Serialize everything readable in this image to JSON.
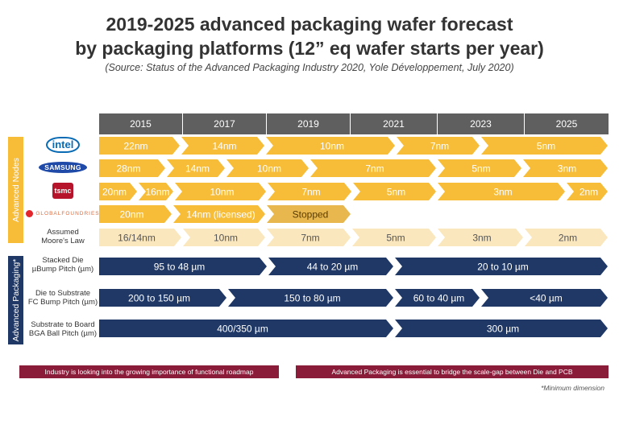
{
  "title": {
    "line1": "2019-2025 advanced packaging wafer forecast",
    "line2": "by packaging platforms (12” eq wafer starts per year)"
  },
  "source": "(Source: Status of the Advanced Packaging Industry 2020, Yole Développement, July 2020)",
  "years": [
    "2015",
    "2017",
    "2019",
    "2021",
    "2023",
    "2025"
  ],
  "side_labels": {
    "nodes": "Advanced Nodes",
    "packaging": "Advanced Packaging*"
  },
  "logos": {
    "intel": "intel",
    "samsung": "SAMSUNG",
    "tsmc": "tsmc",
    "gf": "GLOBALFOUNDRIES"
  },
  "row_labels": {
    "moore": [
      "Assumed",
      "Moore's Law"
    ],
    "stacked": [
      "Stacked Die",
      "µBump Pitch (µm)"
    ],
    "die_sub": [
      "Die to Substrate",
      "FC Bump Pitch (µm)"
    ],
    "sub_board": [
      "Substrate to Board",
      "BGA Ball Pitch (µm)"
    ]
  },
  "rows": {
    "intel": [
      "22nm",
      "14nm",
      "10nm",
      "7nm",
      "5nm"
    ],
    "samsung": [
      "28nm",
      "14nm",
      "10nm",
      "7nm",
      "5nm",
      "3nm"
    ],
    "tsmc": [
      "20nm",
      "16nm",
      "10nm",
      "7nm",
      "5nm",
      "3nm",
      "2nm"
    ],
    "gf": [
      "20nm",
      "14nm (licensed)",
      "Stopped"
    ],
    "moore": [
      "16/14nm",
      "10nm",
      "7nm",
      "5nm",
      "3nm",
      "2nm"
    ],
    "stacked": [
      "95 to 48 µm",
      "44 to 20 µm",
      "20 to 10 µm"
    ],
    "die_sub": [
      "200 to 150 µm",
      "150 to 80 µm",
      "60 to 40 µm",
      "<40 µm"
    ],
    "sub_board": [
      "400/350 µm",
      "300 µm"
    ]
  },
  "banners": {
    "left": "Industry is looking into the growing importance of functional roadmap",
    "right": "Advanced Packaging is essential to bridge the scale-gap between Die and PCB"
  },
  "footnote": "*Minimum dimension",
  "colors": {
    "yellow": "#f7bd38",
    "gray_yellow": "#e8b84f",
    "moore": "#fbe7bd",
    "navy": "#1f3866",
    "banner": "#8a1c3a",
    "year_bar": "#5f5f5f"
  }
}
